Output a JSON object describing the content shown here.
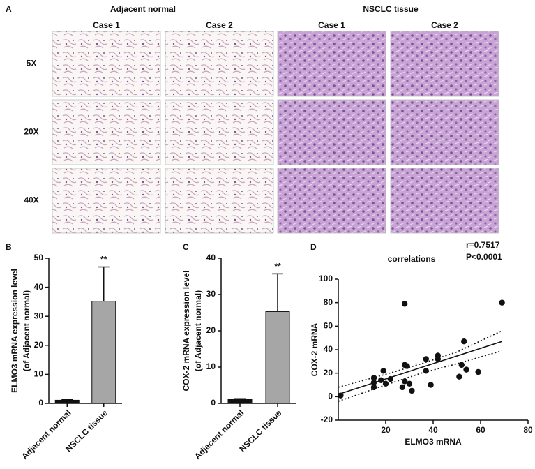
{
  "panel_a": {
    "panel": "A",
    "groups": [
      "Adjacent normal",
      "NSCLC tissue"
    ],
    "columns": [
      "Case 1",
      "Case 2",
      "Case 1",
      "Case 2"
    ],
    "rows": [
      "5X",
      "20X",
      "40X"
    ]
  },
  "chart_data": [
    {
      "type": "bar",
      "panel": "B",
      "ylabel": [
        "ELMO3 mRNA expression level",
        "(of Adjacent normal)"
      ],
      "categories": [
        "Adjacent normal",
        "NSCLC tissue"
      ],
      "values": [
        1.1,
        35.2
      ],
      "errors": [
        0.2,
        11.8
      ],
      "colors": [
        "#111111",
        "#a6a6a6"
      ],
      "annotations": [
        null,
        "**"
      ],
      "ylim": [
        0,
        50
      ],
      "yticks": [
        0,
        10,
        20,
        30,
        40,
        50
      ]
    },
    {
      "type": "bar",
      "panel": "C",
      "ylabel": [
        "COX-2 mRNA expression level",
        "(of Adjacent normal)"
      ],
      "categories": [
        "Adjacent normal",
        "NSCLC tissue"
      ],
      "values": [
        1.1,
        25.3
      ],
      "errors": [
        0.2,
        10.4
      ],
      "colors": [
        "#111111",
        "#a6a6a6"
      ],
      "annotations": [
        null,
        "**"
      ],
      "ylim": [
        0,
        40
      ],
      "yticks": [
        0,
        10,
        20,
        30,
        40
      ]
    },
    {
      "type": "scatter",
      "panel": "D",
      "title": "correlations",
      "stats": [
        "r=0.7517",
        "P<0.0001"
      ],
      "xlabel": "ELMO3 mRNA",
      "ylabel": "COX-2 mRNA",
      "color": "#111111",
      "x": [
        1,
        15,
        15,
        15,
        18,
        19,
        22,
        20,
        27,
        28,
        28,
        29,
        28,
        30,
        31,
        37,
        37,
        39,
        42,
        42,
        51,
        52,
        53,
        54,
        59,
        69
      ],
      "y": [
        1,
        16,
        12,
        8,
        14,
        22,
        15,
        11,
        8,
        79,
        27,
        26,
        13,
        11,
        5,
        32,
        22,
        10,
        35,
        32,
        17,
        27,
        47,
        23,
        21,
        80
      ],
      "fit": {
        "x": [
          0,
          69
        ],
        "y": [
          2,
          47
        ]
      },
      "ci_upper": {
        "x": [
          0,
          20,
          35,
          50,
          69
        ],
        "y": [
          8,
          19,
          28,
          38,
          56
        ]
      },
      "ci_lower": {
        "x": [
          0,
          20,
          35,
          50,
          69
        ],
        "y": [
          -4,
          10,
          20,
          28,
          39
        ]
      },
      "xlim": [
        0,
        80
      ],
      "xticks": [
        20,
        40,
        60,
        80
      ],
      "ylim": [
        -20,
        100
      ],
      "yticks": [
        -20,
        0,
        20,
        40,
        60,
        80,
        100
      ]
    }
  ]
}
